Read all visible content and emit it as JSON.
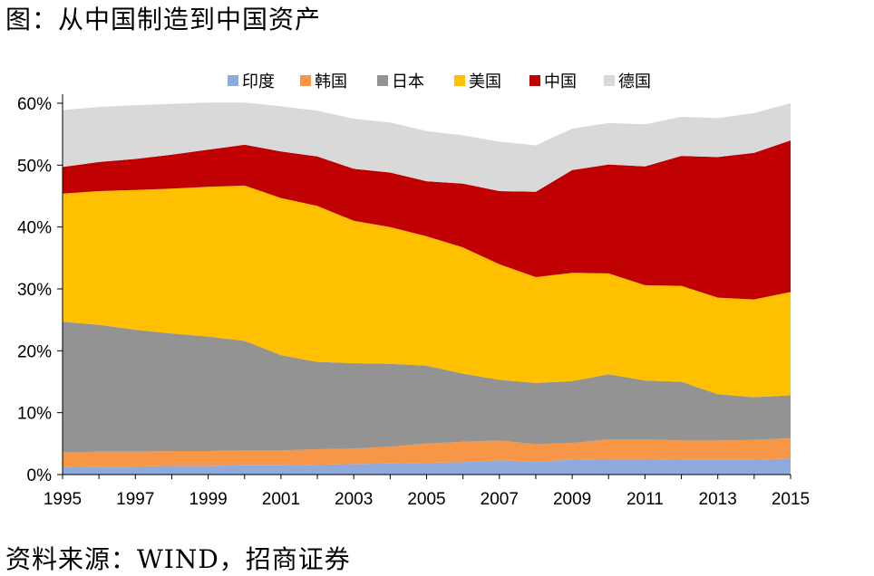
{
  "title": "图：从中国制造到中国资产",
  "source": "资料来源：WIND，招商证券",
  "chart_data": {
    "type": "area",
    "stacked": true,
    "x": [
      1995,
      1996,
      1997,
      1998,
      1999,
      2000,
      2001,
      2002,
      2003,
      2004,
      2005,
      2006,
      2007,
      2008,
      2009,
      2010,
      2011,
      2012,
      2013,
      2014,
      2015
    ],
    "xticks": [
      "1995",
      "1997",
      "1999",
      "2001",
      "2003",
      "2005",
      "2007",
      "2009",
      "2011",
      "2013",
      "2015"
    ],
    "ylim": [
      0,
      60
    ],
    "yticks": [
      "0%",
      "10%",
      "20%",
      "30%",
      "40%",
      "50%",
      "60%"
    ],
    "legend_position": "top",
    "series": [
      {
        "name": "印度",
        "color": "#8FAADC",
        "values": [
          1.2,
          1.3,
          1.3,
          1.4,
          1.4,
          1.5,
          1.5,
          1.6,
          1.7,
          1.8,
          1.9,
          2.0,
          2.3,
          2.1,
          2.4,
          2.5,
          2.5,
          2.4,
          2.4,
          2.4,
          2.6
        ]
      },
      {
        "name": "韩国",
        "color": "#F79646",
        "values": [
          2.4,
          2.4,
          2.4,
          2.4,
          2.4,
          2.4,
          2.4,
          2.5,
          2.5,
          2.7,
          3.1,
          3.3,
          3.2,
          2.8,
          2.7,
          3.2,
          3.2,
          3.1,
          3.1,
          3.2,
          3.3
        ]
      },
      {
        "name": "日本",
        "color": "#939393",
        "values": [
          21.1,
          20.5,
          19.7,
          19.0,
          18.5,
          17.7,
          15.4,
          14.1,
          13.8,
          13.4,
          12.6,
          11.0,
          9.8,
          9.9,
          10.0,
          10.5,
          9.5,
          9.5,
          7.5,
          6.9,
          6.9
        ]
      },
      {
        "name": "美国",
        "color": "#FFC000",
        "values": [
          20.7,
          21.6,
          22.6,
          23.4,
          24.2,
          25.1,
          25.4,
          25.2,
          23.0,
          22.1,
          20.9,
          20.4,
          18.7,
          17.1,
          17.5,
          16.3,
          15.4,
          15.5,
          15.6,
          15.8,
          16.7
        ]
      },
      {
        "name": "中国",
        "color": "#C00000",
        "values": [
          4.3,
          4.7,
          5.0,
          5.5,
          6.0,
          6.6,
          7.5,
          8.0,
          8.4,
          8.8,
          8.9,
          10.3,
          11.8,
          13.8,
          16.6,
          17.6,
          19.2,
          21.0,
          22.7,
          23.7,
          24.5
        ]
      },
      {
        "name": "德国",
        "color": "#D9D9D9",
        "values": [
          9.2,
          8.9,
          8.7,
          8.2,
          7.6,
          6.8,
          7.3,
          7.4,
          8.1,
          8.1,
          8.1,
          7.8,
          8.0,
          7.5,
          6.7,
          6.7,
          6.8,
          6.3,
          6.3,
          6.4,
          6.0
        ]
      }
    ]
  }
}
